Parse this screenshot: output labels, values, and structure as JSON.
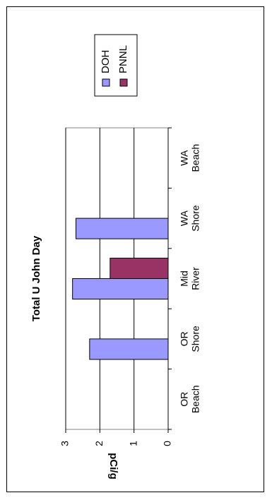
{
  "chart_data": {
    "type": "bar",
    "orientation": "rotated-90",
    "title": "Total U John Day",
    "ylabel": "pCi/g",
    "xlabel": "",
    "ylim": [
      0,
      3
    ],
    "yticks": [
      0,
      1,
      2,
      3
    ],
    "grid": true,
    "legend_position": "top-right",
    "categories": [
      [
        "OR",
        "Beach"
      ],
      [
        "OR",
        "Shore"
      ],
      [
        "Mid",
        "River"
      ],
      [
        "WA",
        "Shore"
      ],
      [
        "WA",
        "Beach"
      ]
    ],
    "series": [
      {
        "name": "DOH",
        "color": "#9999ff",
        "values": [
          null,
          2.3,
          2.8,
          2.7,
          null
        ]
      },
      {
        "name": "PNNL",
        "color": "#993366",
        "values": [
          null,
          null,
          1.7,
          null,
          null
        ]
      }
    ]
  }
}
